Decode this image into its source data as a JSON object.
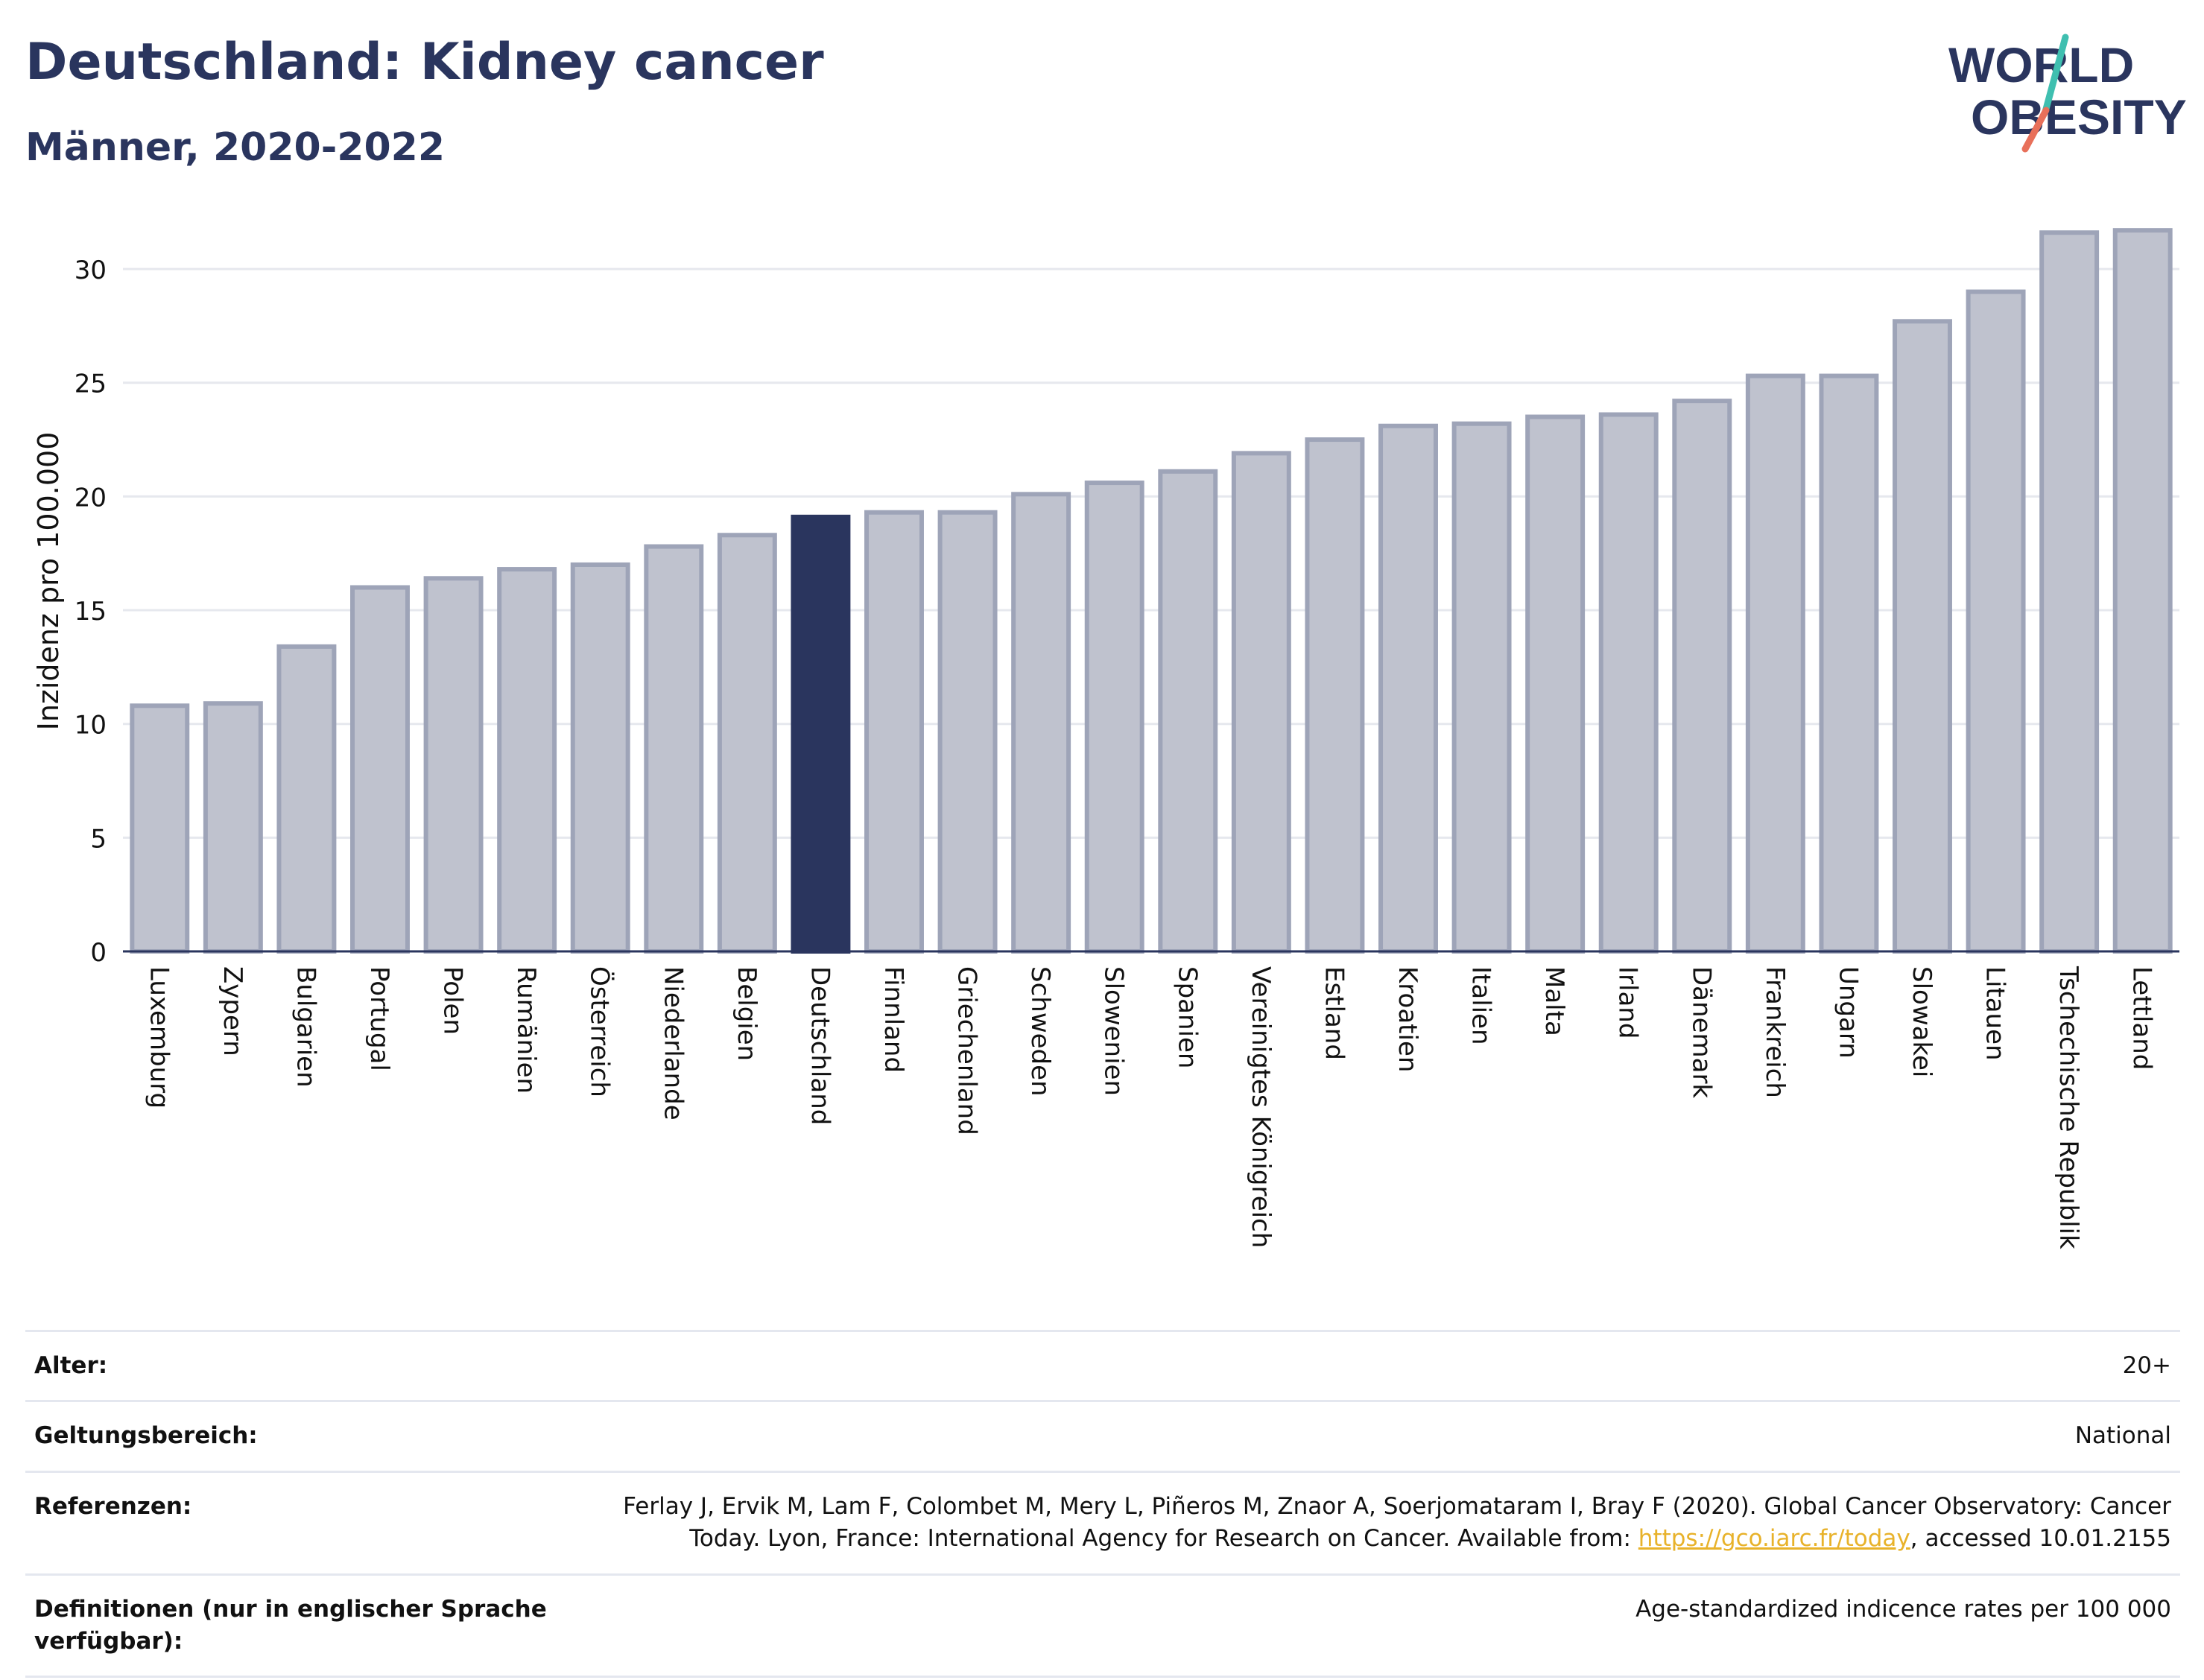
{
  "header": {
    "title": "Deutschland: Kidney cancer",
    "subtitle": "Männer, 2020-2022"
  },
  "logo": {
    "line1": "WORLD",
    "line2": "OBESITY",
    "slash_colors": [
      "#3fbfb0",
      "#e8705a"
    ],
    "text_color": "#2a355e"
  },
  "chart_data": {
    "type": "bar",
    "ylabel": "Inzidenz pro 100.000",
    "xlabel": "",
    "ylim": [
      0,
      32
    ],
    "yticks": [
      0,
      5,
      10,
      15,
      20,
      25,
      30
    ],
    "grid": true,
    "highlight_category": "Deutschland",
    "colors": {
      "bar": "#bfc2ce",
      "bar_border": "#9ea4b8",
      "highlight": "#2a355e",
      "grid": "#e6e8ee"
    },
    "categories": [
      "Luxemburg",
      "Zypern",
      "Bulgarien",
      "Portugal",
      "Polen",
      "Rumänien",
      "Österreich",
      "Niederlande",
      "Belgien",
      "Deutschland",
      "Finnland",
      "Griechenland",
      "Schweden",
      "Slowenien",
      "Spanien",
      "Vereinigtes Königreich",
      "Estland",
      "Kroatien",
      "Italien",
      "Malta",
      "Irland",
      "Dänemark",
      "Frankreich",
      "Ungarn",
      "Slowakei",
      "Litauen",
      "Tschechische Republik",
      "Lettland"
    ],
    "values": [
      10.8,
      10.9,
      13.4,
      16.0,
      16.4,
      16.8,
      17.0,
      17.8,
      18.3,
      19.1,
      19.3,
      19.3,
      20.1,
      20.6,
      21.1,
      21.9,
      22.5,
      23.1,
      23.2,
      23.5,
      23.6,
      24.2,
      25.3,
      25.3,
      27.7,
      29.0,
      31.6,
      31.7
    ]
  },
  "meta": {
    "age_label": "Alter:",
    "age_value": "20+",
    "scope_label": "Geltungsbereich:",
    "scope_value": "National",
    "ref_label": "Referenzen:",
    "ref_text_1": "Ferlay J, Ervik M, Lam F, Colombet M, Mery L, Piñeros M, Znaor A, Soerjomataram I, Bray F (2020). Global Cancer Observatory: Cancer Today. Lyon, France: International Agency for Research on Cancer. Available from: ",
    "ref_link": "https://gco.iarc.fr/today",
    "ref_text_2": ", accessed 10.01.2155",
    "def_label": "Definitionen (nur in englischer Sprache verfügbar):",
    "def_value": "Age-standardized indicence rates per 100 000"
  }
}
